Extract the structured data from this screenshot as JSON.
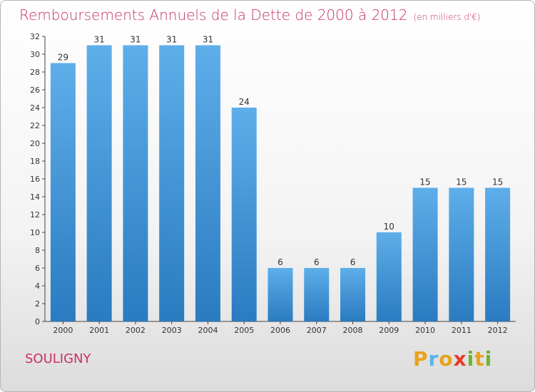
{
  "title": "Remboursements Annuels de la Dette de 2000 à 2012",
  "unit": "(en milliers d'€)",
  "commune": "SOULIGNY",
  "logo": "Proxiti",
  "colors": {
    "title": "#c8306a",
    "bar_top": "#5eaeea",
    "bar_bottom": "#2a7bc0"
  },
  "chart_data": {
    "type": "bar",
    "categories": [
      "2000",
      "2001",
      "2002",
      "2003",
      "2004",
      "2005",
      "2006",
      "2007",
      "2008",
      "2009",
      "2010",
      "2011",
      "2012"
    ],
    "values": [
      29,
      31,
      31,
      31,
      31,
      24,
      6,
      6,
      6,
      10,
      15,
      15,
      15
    ],
    "ylim": [
      0,
      32
    ],
    "yticks": [
      0,
      2,
      4,
      6,
      8,
      10,
      12,
      14,
      16,
      18,
      20,
      22,
      24,
      26,
      28,
      30,
      32
    ],
    "grid": false,
    "legend": "none"
  }
}
